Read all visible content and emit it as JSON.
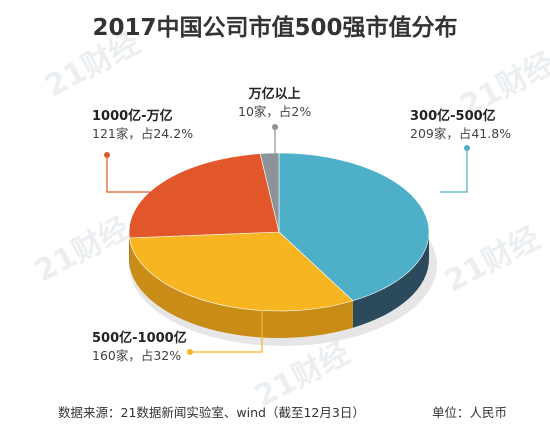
{
  "watermark": "21财经",
  "chart_data": {
    "type": "pie",
    "title": "2017中国公司市值500强市值分布",
    "slices": [
      {
        "name": "300亿-500亿",
        "count_label": "209家，占41.8%",
        "value": 41.8,
        "color": "#4eafc9",
        "side_color": "#2b4a5c"
      },
      {
        "name": "500亿-1000亿",
        "count_label": "160家，占32%",
        "value": 32,
        "color": "#f6b521",
        "side_color": "#c98d17"
      },
      {
        "name": "1000亿-万亿",
        "count_label": "121家，占24.2%",
        "value": 24.2,
        "color": "#e2572a",
        "side_color": "#9c3b1c"
      },
      {
        "name": "万亿以上",
        "count_label": "10家，占2%",
        "value": 2,
        "color": "#8c9399",
        "side_color": "#5a6066"
      }
    ]
  },
  "footer": {
    "source": "数据来源：21数据新闻实验室、wind（截至12月3日）",
    "unit": "单位：人民币"
  }
}
